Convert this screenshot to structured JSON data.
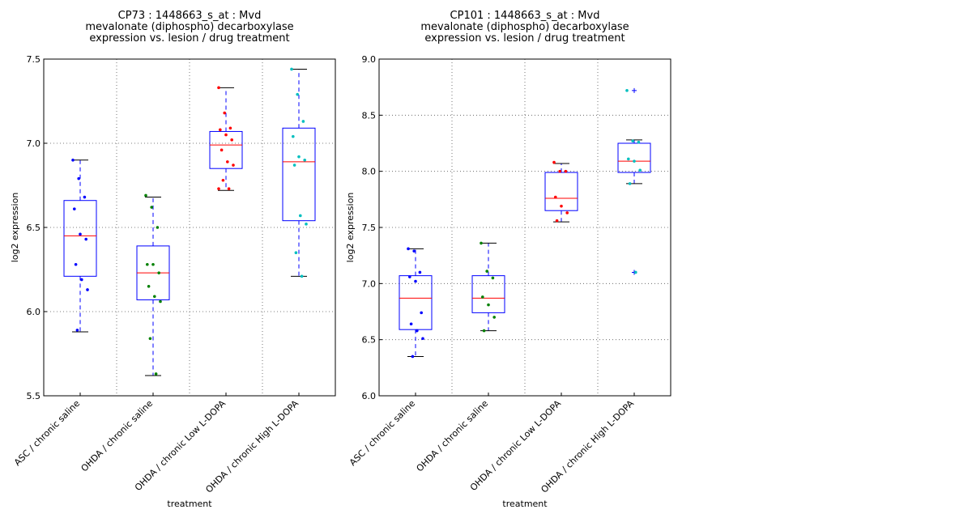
{
  "chart_data": [
    {
      "type": "box",
      "title": [
        "CP73 : 1448663_s_at : Mvd",
        "mevalonate (diphospho) decarboxylase",
        "expression vs. lesion / drug treatment"
      ],
      "xlabel": "treatment",
      "ylabel": "log2 expression",
      "categories": [
        "ASC / chronic saline",
        "OHDA / chronic saline",
        "OHDA / chronic Low L-DOPA",
        "OHDA / chronic High L-DOPA"
      ],
      "ylim": [
        5.5,
        7.5
      ],
      "yticks": [
        5.5,
        {
          "value": 6,
          "label": "6.0"
        },
        6.5,
        {
          "value": 7,
          "label": "7.0"
        },
        7.5
      ],
      "grid": true,
      "box_color": "#0000ff",
      "median_color": "#ff0000",
      "cap_color": "#000000",
      "point_colors": [
        "#0000ff",
        "#008000",
        "#ff0000",
        "#00bfbf"
      ],
      "boxes": [
        {
          "whislo": 5.88,
          "q1": 6.21,
          "med": 6.45,
          "q3": 6.66,
          "whishi": 6.9
        },
        {
          "whislo": 5.62,
          "q1": 6.07,
          "med": 6.23,
          "q3": 6.39,
          "whishi": 6.68
        },
        {
          "whislo": 6.72,
          "q1": 6.85,
          "med": 6.99,
          "q3": 7.07,
          "whishi": 7.33
        },
        {
          "whislo": 6.21,
          "q1": 6.54,
          "med": 6.89,
          "q3": 7.09,
          "whishi": 7.44
        }
      ],
      "points": [
        [
          6.9,
          6.79,
          6.68,
          6.61,
          6.46,
          6.43,
          6.28,
          6.19,
          6.13,
          5.89
        ],
        [
          6.69,
          6.62,
          6.5,
          6.28,
          6.28,
          6.23,
          6.15,
          6.09,
          6.06,
          5.84,
          5.63
        ],
        [
          7.33,
          7.18,
          7.09,
          7.08,
          7.05,
          7.02,
          6.96,
          6.89,
          6.87,
          6.78,
          6.73,
          6.73
        ],
        [
          7.44,
          7.29,
          7.13,
          7.04,
          6.92,
          6.9,
          6.87,
          6.57,
          6.52,
          6.35,
          6.21
        ]
      ]
    },
    {
      "type": "box",
      "title": [
        "CP101 : 1448663_s_at : Mvd",
        "mevalonate (diphospho) decarboxylase",
        "expression vs. lesion / drug treatment"
      ],
      "xlabel": "treatment",
      "ylabel": "log2 expression",
      "categories": [
        "ASC / chronic saline",
        "OHDA / chronic saline",
        "OHDA / chronic Low L-DOPA",
        "OHDA / chronic High L-DOPA"
      ],
      "ylim": [
        6,
        9
      ],
      "yticks": [
        {
          "value": 6,
          "label": "6.0"
        },
        6.5,
        {
          "value": 7,
          "label": "7.0"
        },
        7.5,
        {
          "value": 8,
          "label": "8.0"
        },
        8.5,
        {
          "value": 9,
          "label": "9.0"
        }
      ],
      "grid": true,
      "box_color": "#0000ff",
      "median_color": "#ff0000",
      "cap_color": "#000000",
      "point_colors": [
        "#0000ff",
        "#008000",
        "#ff0000",
        "#00bfbf"
      ],
      "boxes": [
        {
          "whislo": 6.35,
          "q1": 6.59,
          "med": 6.87,
          "q3": 7.07,
          "whishi": 7.31
        },
        {
          "whislo": 6.58,
          "q1": 6.74,
          "med": 6.87,
          "q3": 7.07,
          "whishi": 7.36
        },
        {
          "whislo": 7.55,
          "q1": 7.65,
          "med": 7.76,
          "q3": 7.99,
          "whishi": 8.07
        },
        {
          "whislo": 7.89,
          "q1": 7.99,
          "med": 8.09,
          "q3": 8.25,
          "whishi": 8.28,
          "fliers": [
            8.72,
            7.1
          ]
        }
      ],
      "points": [
        [
          7.31,
          7.29,
          7.1,
          7.06,
          7.02,
          6.74,
          6.64,
          6.58,
          6.51,
          6.35
        ],
        [
          7.36,
          7.11,
          7.05,
          6.88,
          6.81,
          6.7,
          6.58
        ],
        [
          8.08,
          8.0,
          8.0,
          7.77,
          7.69,
          7.63,
          7.56
        ],
        [
          8.72,
          8.27,
          8.26,
          8.11,
          8.09,
          8.01,
          7.89,
          7.1
        ]
      ]
    }
  ]
}
